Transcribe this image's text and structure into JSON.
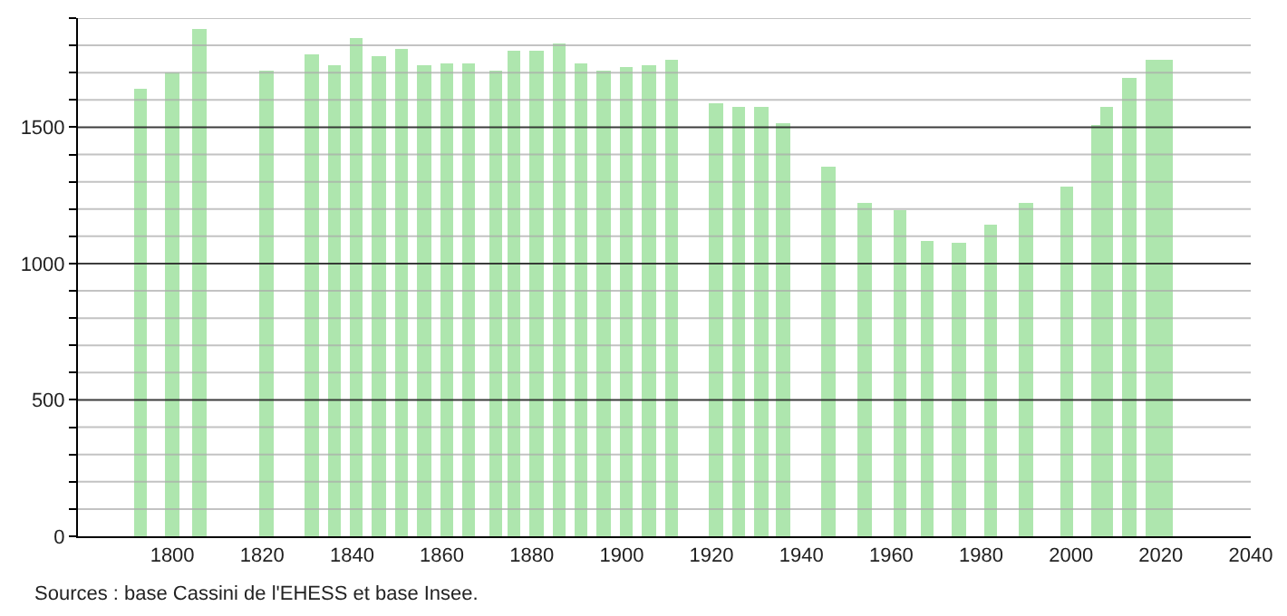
{
  "chart_data": {
    "type": "bar",
    "x": [
      1793,
      1800,
      1806,
      1821,
      1831,
      1836,
      1841,
      1846,
      1851,
      1856,
      1861,
      1866,
      1872,
      1876,
      1881,
      1886,
      1891,
      1896,
      1901,
      1906,
      1911,
      1921,
      1926,
      1931,
      1936,
      1946,
      1954,
      1962,
      1968,
      1975,
      1982,
      1990,
      1999,
      2006,
      2008,
      2013,
      2018,
      2021
    ],
    "values": [
      1640,
      1700,
      1860,
      1710,
      1770,
      1725,
      1830,
      1760,
      1790,
      1725,
      1735,
      1735,
      1705,
      1780,
      1780,
      1805,
      1735,
      1705,
      1720,
      1725,
      1745,
      1590,
      1575,
      1575,
      1515,
      1355,
      1225,
      1195,
      1080,
      1075,
      1145,
      1220,
      1280,
      1510,
      1575,
      1680,
      1745,
      1745
    ],
    "color": "#aee6ae",
    "xlim": [
      1779,
      2040
    ],
    "xticks": [
      1800,
      1820,
      1840,
      1860,
      1880,
      1900,
      1920,
      1940,
      1960,
      1980,
      2000,
      2020,
      2040
    ],
    "ylim": [
      0,
      1900
    ],
    "yticks": [
      0,
      {
        "value": 100,
        "label": null
      },
      {
        "value": 200,
        "label": null
      },
      {
        "value": 300,
        "label": null
      },
      {
        "value": 400,
        "label": null
      },
      500,
      {
        "value": 600,
        "label": null
      },
      {
        "value": 700,
        "label": null
      },
      {
        "value": 800,
        "label": null
      },
      {
        "value": 900,
        "label": null
      },
      1000,
      {
        "value": 1100,
        "label": null
      },
      {
        "value": 1200,
        "label": null
      },
      {
        "value": 1300,
        "label": null
      },
      {
        "value": 1400,
        "label": null
      },
      1500,
      {
        "value": 1600,
        "label": null
      },
      {
        "value": 1700,
        "label": null
      },
      {
        "value": 1800,
        "label": null
      },
      {
        "value": 1900,
        "label": null
      }
    ],
    "grid": true,
    "annotations": [
      "Sources : base Cassini de l'EHESS et base Insee."
    ]
  }
}
